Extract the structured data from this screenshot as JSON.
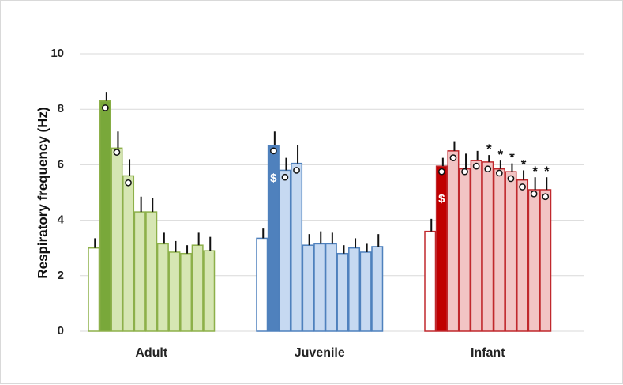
{
  "chart_data": {
    "type": "bar",
    "ylabel": "Respiratory frequency (Hz)",
    "xlabel": "",
    "ylim": [
      0,
      10
    ],
    "yticks": [
      0,
      2,
      4,
      6,
      8,
      10
    ],
    "grid": true,
    "groups": [
      {
        "name": "Adult",
        "colors": {
          "stroke": "#8db04a",
          "first_fill": "#ffffff",
          "second_fill": "#79a83a",
          "rest_fill": "#d6e6b3"
        },
        "values": [
          3.0,
          8.3,
          6.6,
          5.6,
          4.3,
          4.3,
          3.15,
          2.85,
          2.8,
          3.1,
          2.9
        ],
        "errors": [
          0.35,
          0.3,
          0.6,
          0.6,
          0.55,
          0.5,
          0.4,
          0.4,
          0.3,
          0.45,
          0.5
        ],
        "circles": [
          false,
          true,
          true,
          true,
          false,
          false,
          false,
          false,
          false,
          false,
          false
        ],
        "circle_values": [
          null,
          8.05,
          6.45,
          5.35,
          null,
          null,
          null,
          null,
          null,
          null,
          null
        ],
        "stars": [
          false,
          false,
          false,
          false,
          false,
          false,
          false,
          false,
          false,
          false,
          false
        ],
        "dollars": [
          false,
          false,
          false,
          false,
          false,
          false,
          false,
          false,
          false,
          false,
          false
        ]
      },
      {
        "name": "Juvenile",
        "colors": {
          "stroke": "#4f81bd",
          "first_fill": "#ffffff",
          "second_fill": "#4f81bd",
          "rest_fill": "#c6d9f1"
        },
        "values": [
          3.35,
          6.7,
          5.8,
          6.05,
          3.1,
          3.15,
          3.15,
          2.8,
          3.0,
          2.85,
          3.05
        ],
        "errors": [
          0.35,
          0.5,
          0.45,
          0.65,
          0.4,
          0.45,
          0.4,
          0.3,
          0.35,
          0.3,
          0.45
        ],
        "circles": [
          false,
          true,
          true,
          true,
          false,
          false,
          false,
          false,
          false,
          false,
          false
        ],
        "circle_values": [
          null,
          6.5,
          5.55,
          5.8,
          null,
          null,
          null,
          null,
          null,
          null,
          null
        ],
        "stars": [
          false,
          false,
          false,
          false,
          false,
          false,
          false,
          false,
          false,
          false,
          false
        ],
        "dollars": [
          false,
          true,
          false,
          false,
          false,
          false,
          false,
          false,
          false,
          false,
          false
        ]
      },
      {
        "name": "Infant",
        "colors": {
          "stroke": "#c0282d",
          "first_fill": "#ffffff",
          "second_fill": "#c00000",
          "rest_fill": "#f2c4c4"
        },
        "values": [
          3.6,
          5.95,
          6.5,
          5.85,
          6.15,
          6.1,
          5.85,
          5.75,
          5.45,
          5.1,
          5.1
        ],
        "errors": [
          0.45,
          0.3,
          0.35,
          0.55,
          0.35,
          0.25,
          0.3,
          0.3,
          0.35,
          0.45,
          0.45
        ],
        "circles": [
          false,
          true,
          true,
          true,
          true,
          true,
          true,
          true,
          true,
          true,
          true
        ],
        "circle_values": [
          null,
          5.75,
          6.25,
          5.75,
          5.95,
          5.85,
          5.7,
          5.5,
          5.2,
          4.95,
          4.85
        ],
        "stars": [
          false,
          false,
          false,
          false,
          false,
          true,
          true,
          true,
          true,
          true,
          true
        ],
        "dollars": [
          false,
          true,
          false,
          false,
          false,
          false,
          false,
          false,
          false,
          false,
          false
        ]
      }
    ],
    "markers": {
      "star": "*",
      "dollar": "$"
    }
  }
}
